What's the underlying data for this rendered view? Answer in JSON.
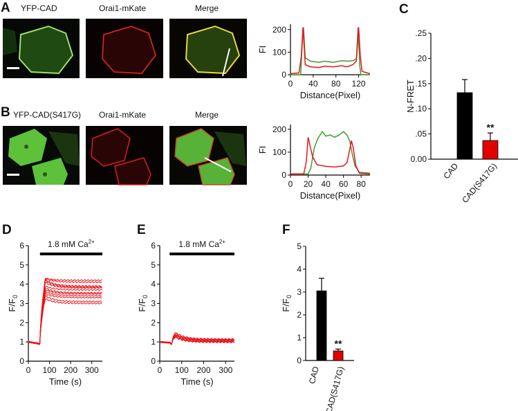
{
  "panels": {
    "A": {
      "label": "A",
      "images": [
        "YFP-CAD",
        "Orai1-mKate",
        "Merge"
      ]
    },
    "B": {
      "label": "B",
      "images": [
        "YFP-CAD(S417G)",
        "Orai1-mKate",
        "Merge"
      ]
    },
    "C": {
      "label": "C"
    },
    "D": {
      "label": "D"
    },
    "E": {
      "label": "E"
    },
    "F": {
      "label": "F"
    }
  },
  "colors": {
    "green": "#3f9a2c",
    "red": "#e8141b",
    "black": "#000000",
    "bar_red": "#e00000"
  },
  "chart_data": [
    {
      "id": "A-profile",
      "type": "line",
      "xlabel": "Distance(Pixel)",
      "ylabel": "FI",
      "xlim": [
        0,
        140
      ],
      "ylim": [
        0,
        210
      ],
      "xticks": [
        "0",
        "40",
        "80",
        "120"
      ],
      "yticks": [
        "0",
        "100",
        "200"
      ],
      "series": [
        {
          "color": "green",
          "x": [
            0,
            18,
            21,
            23,
            26,
            35,
            50,
            60,
            75,
            90,
            100,
            110,
            116,
            119,
            122,
            124,
            140
          ],
          "y": [
            0,
            0,
            150,
            210,
            75,
            60,
            55,
            60,
            55,
            62,
            60,
            62,
            70,
            210,
            40,
            0,
            0
          ]
        },
        {
          "color": "red",
          "x": [
            0,
            15,
            19,
            22,
            26,
            35,
            50,
            60,
            75,
            90,
            100,
            110,
            116,
            120,
            123,
            126,
            132,
            140
          ],
          "y": [
            5,
            8,
            80,
            210,
            45,
            35,
            32,
            38,
            35,
            40,
            35,
            45,
            60,
            210,
            80,
            15,
            10,
            5
          ]
        }
      ]
    },
    {
      "id": "B-profile",
      "type": "line",
      "xlabel": "Distance(Pixel)",
      "ylabel": "FI",
      "xlim": [
        0,
        90
      ],
      "ylim": [
        0,
        210
      ],
      "xticks": [
        "0",
        "20",
        "40",
        "60",
        "80"
      ],
      "yticks": [
        "0",
        "100",
        "200"
      ],
      "series": [
        {
          "color": "green",
          "x": [
            0,
            20,
            23,
            27,
            31,
            36,
            40,
            45,
            50,
            55,
            60,
            64,
            67,
            70,
            73,
            78,
            85,
            90
          ],
          "y": [
            5,
            5,
            30,
            120,
            160,
            190,
            170,
            175,
            165,
            175,
            190,
            175,
            150,
            90,
            40,
            12,
            10,
            8
          ]
        },
        {
          "color": "red",
          "x": [
            0,
            15,
            18,
            20,
            22,
            25,
            30,
            40,
            50,
            60,
            64,
            67,
            69,
            71,
            74,
            78,
            90
          ],
          "y": [
            5,
            5,
            60,
            165,
            130,
            80,
            45,
            38,
            35,
            40,
            55,
            110,
            150,
            120,
            40,
            8,
            5
          ]
        }
      ]
    },
    {
      "id": "C",
      "type": "bar",
      "ylabel": "N-FRET",
      "ylim": [
        0,
        0.25
      ],
      "yticks": [
        "0.00",
        ".05",
        ".10",
        ".15",
        ".20",
        ".25"
      ],
      "categories": [
        "CAD",
        "CAD(S417G)"
      ],
      "values": [
        0.132,
        0.037
      ],
      "errors": [
        0.026,
        0.015
      ],
      "bar_colors": [
        "black",
        "bar_red"
      ],
      "annotation": "**"
    },
    {
      "id": "D",
      "type": "line",
      "xlabel": "Time (s)",
      "ylabel": "F/F",
      "ylabel_sub": "0",
      "xlim": [
        0,
        350
      ],
      "ylim": [
        0,
        6
      ],
      "xticks": [
        "0",
        "100",
        "200",
        "300"
      ],
      "yticks": [
        "0",
        "1",
        "2",
        "3",
        "4",
        "5",
        "6"
      ],
      "bar_label": "1.8 mM Ca",
      "bar_label_sup": "2+",
      "bar_range": [
        55,
        350
      ],
      "traces": {
        "baseline": 1.0,
        "onset": 55,
        "peak_time": 80,
        "peaks": [
          4.3,
          4.3,
          4.25,
          4.2,
          4.1,
          3.9,
          3.8,
          3.7,
          3.6,
          3.5,
          3.4,
          3.25
        ],
        "plateaus": [
          4.2,
          4.1,
          3.9,
          3.85,
          3.8,
          3.7,
          3.55,
          3.5,
          3.4,
          3.3,
          3.1,
          3.0
        ]
      }
    },
    {
      "id": "E",
      "type": "line",
      "xlabel": "Time (s)",
      "ylabel": "F/F",
      "ylabel_sub": "0",
      "xlim": [
        0,
        340
      ],
      "ylim": [
        0,
        6
      ],
      "xticks": [
        "0",
        "100",
        "200",
        "300"
      ],
      "yticks": [
        "0",
        "1",
        "2",
        "3",
        "4",
        "5",
        "6"
      ],
      "bar_label": "1.8 mM Ca",
      "bar_label_sup": "2+",
      "bar_range": [
        45,
        340
      ],
      "traces": {
        "baseline": 1.0,
        "onset": 55,
        "peak_time": 70,
        "peaks": [
          1.5,
          1.45,
          1.4,
          1.38,
          1.35,
          1.3,
          1.28,
          1.25
        ],
        "plateaus": [
          1.15,
          1.12,
          1.1,
          1.08,
          1.05,
          1.02,
          1.0,
          0.98
        ]
      }
    },
    {
      "id": "F",
      "type": "bar",
      "ylabel": "F/F",
      "ylabel_sub": "0",
      "ylim": [
        0,
        5
      ],
      "yticks": [
        "0",
        "1",
        "2",
        "3",
        "4",
        "5"
      ],
      "categories": [
        "CAD",
        "CAD(S417G)"
      ],
      "values": [
        3.05,
        0.42
      ],
      "errors": [
        0.55,
        0.08
      ],
      "bar_colors": [
        "black",
        "bar_red"
      ],
      "annotation": "**"
    }
  ]
}
